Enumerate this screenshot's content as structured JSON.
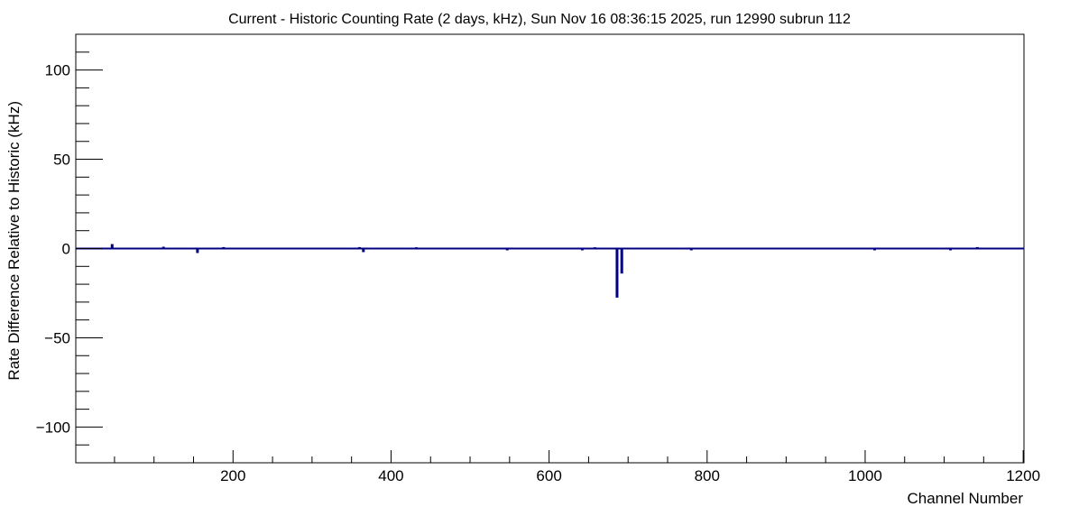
{
  "chart_data": {
    "type": "bar",
    "title": "Current - Historic Counting Rate (2 days, kHz), Sun Nov 16 08:36:15 2025, run 12990 subrun 112",
    "xlabel": "Channel Number",
    "ylabel": "Rate Difference Relative to Historic (kHz)",
    "xlim": [
      1,
      1201
    ],
    "ylim": [
      -120,
      120
    ],
    "x_major_ticks": [
      200,
      400,
      600,
      800,
      1000,
      1200
    ],
    "x_tick_labels": [
      "200",
      "400",
      "600",
      "800",
      "1000",
      "1200"
    ],
    "y_major_ticks": [
      -100,
      -50,
      0,
      50,
      100
    ],
    "y_tick_labels": [
      "−100",
      "−50",
      "0",
      "50",
      "100"
    ],
    "series_color": "#000080",
    "bars": [
      {
        "x": 47,
        "y": 2.5
      },
      {
        "x": 112,
        "y": 1.0
      },
      {
        "x": 155,
        "y": -2.5
      },
      {
        "x": 188,
        "y": 0.8
      },
      {
        "x": 360,
        "y": 0.8
      },
      {
        "x": 365,
        "y": -2.0
      },
      {
        "x": 432,
        "y": 0.7
      },
      {
        "x": 547,
        "y": -1.0
      },
      {
        "x": 642,
        "y": -1.0
      },
      {
        "x": 658,
        "y": 0.7
      },
      {
        "x": 686,
        "y": -27.5
      },
      {
        "x": 692,
        "y": -14.0
      },
      {
        "x": 780,
        "y": -1.0
      },
      {
        "x": 1012,
        "y": -1.0
      },
      {
        "x": 1108,
        "y": -1.0
      },
      {
        "x": 1142,
        "y": 0.8
      }
    ]
  }
}
